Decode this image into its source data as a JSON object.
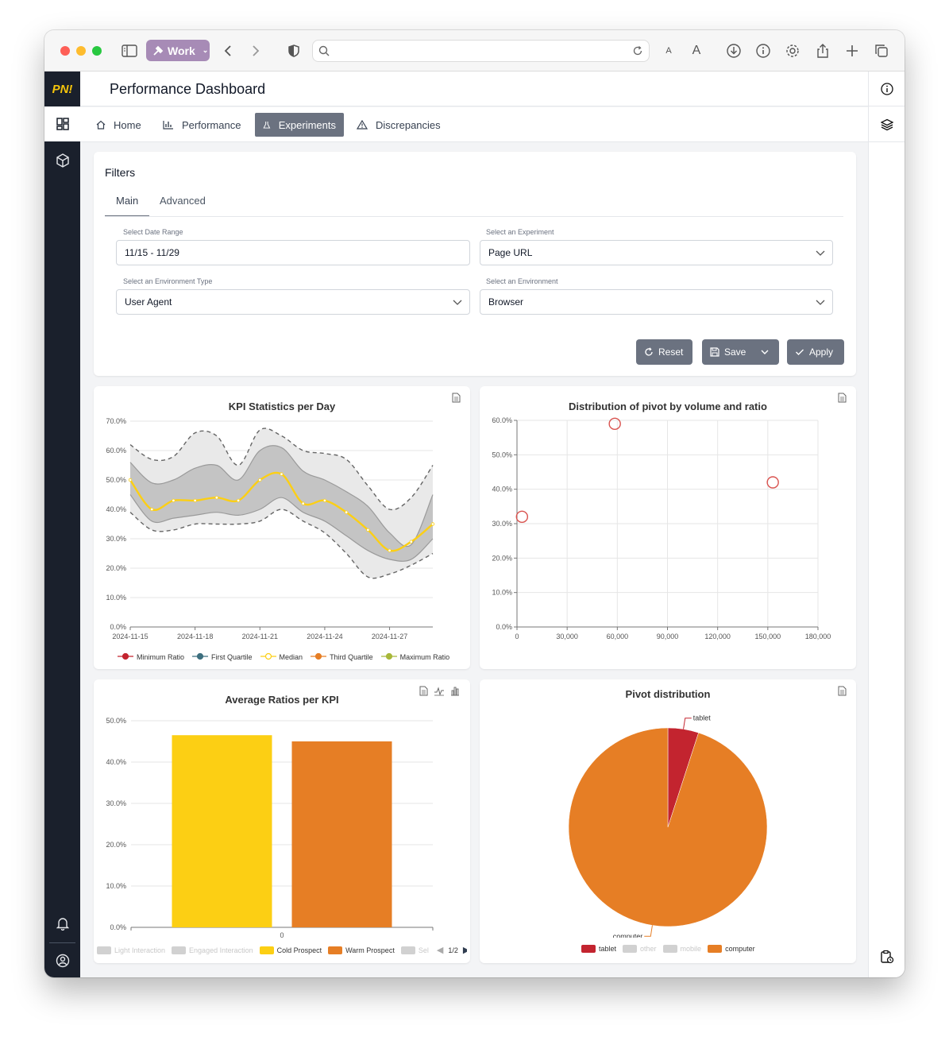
{
  "browser": {
    "profile_label": "Work"
  },
  "app": {
    "logo": "PN!",
    "title": "Performance Dashboard"
  },
  "nav": {
    "tabs": [
      {
        "label": "Home",
        "icon": "home-icon"
      },
      {
        "label": "Performance",
        "icon": "bar-chart-icon"
      },
      {
        "label": "Experiments",
        "icon": "flask-icon",
        "active": true
      },
      {
        "label": "Discrepancies",
        "icon": "warning-icon"
      }
    ]
  },
  "filters": {
    "title": "Filters",
    "tabs": [
      {
        "label": "Main",
        "active": true
      },
      {
        "label": "Advanced"
      }
    ],
    "date_range": {
      "label": "Select Date Range",
      "value": "11/15 - 11/29"
    },
    "experiment": {
      "label": "Select an Experiment",
      "value": "Page URL"
    },
    "env_type": {
      "label": "Select an Environment Type",
      "value": "User Agent"
    },
    "environment": {
      "label": "Select an Environment",
      "value": "Browser"
    },
    "buttons": {
      "reset": "Reset",
      "save": "Save",
      "apply": "Apply"
    }
  },
  "colors": {
    "sidebar": "#1a202c",
    "logo": "#f6c50b",
    "active_tab": "#6b7280",
    "yellow": "#fccf14",
    "orange": "#e67e25",
    "red": "#c3242f",
    "scatter_red": "#d9534f"
  },
  "chart_data": [
    {
      "type": "area",
      "title": "KPI Statistics per Day",
      "x": [
        "2024-11-15",
        "2024-11-16",
        "2024-11-17",
        "2024-11-18",
        "2024-11-19",
        "2024-11-20",
        "2024-11-21",
        "2024-11-22",
        "2024-11-23",
        "2024-11-24",
        "2024-11-25",
        "2024-11-26",
        "2024-11-27",
        "2024-11-28",
        "2024-11-29"
      ],
      "x_tick_labels": [
        "2024-11-15",
        "2024-11-18",
        "2024-11-21",
        "2024-11-24",
        "2024-11-27"
      ],
      "ylim": [
        0,
        70
      ],
      "y_ticks": [
        "0.0%",
        "10.0%",
        "20.0%",
        "30.0%",
        "40.0%",
        "50.0%",
        "60.0%",
        "70.0%"
      ],
      "series": [
        {
          "name": "Minimum Ratio",
          "values": [
            39,
            33,
            33,
            35,
            35,
            35,
            36,
            40,
            36,
            32,
            25,
            17,
            18,
            21,
            25
          ]
        },
        {
          "name": "First Quartile",
          "values": [
            45,
            36,
            37,
            38,
            39,
            38,
            40,
            44,
            39,
            36,
            31,
            26,
            23,
            23,
            30
          ]
        },
        {
          "name": "Median",
          "values": [
            50,
            40,
            43,
            43,
            44,
            43,
            50,
            52,
            42,
            43,
            39,
            33,
            26,
            29,
            35
          ]
        },
        {
          "name": "Third Quartile",
          "values": [
            56,
            49,
            50,
            54,
            55,
            50,
            60,
            61,
            53,
            50,
            46,
            41,
            32,
            28,
            45
          ]
        },
        {
          "name": "Maximum Ratio",
          "values": [
            62,
            57,
            58,
            66,
            65,
            55,
            67,
            65,
            60,
            59,
            57,
            48,
            40,
            44,
            55
          ]
        }
      ],
      "legend_colors": [
        "#c3242f",
        "#3d6f7f",
        "#fccf14",
        "#e67e25",
        "#a8b83a"
      ]
    },
    {
      "type": "scatter",
      "title": "Distribution of pivot by volume and ratio",
      "xlim": [
        0,
        180000
      ],
      "ylim": [
        0,
        60
      ],
      "x_ticks": [
        "0",
        "30,000",
        "60,000",
        "90,000",
        "120,000",
        "150,000",
        "180,000"
      ],
      "y_ticks": [
        "0.0%",
        "10.0%",
        "20.0%",
        "30.0%",
        "40.0%",
        "50.0%",
        "60.0%"
      ],
      "points": [
        {
          "x": 3000,
          "y": 32
        },
        {
          "x": 58500,
          "y": 59
        },
        {
          "x": 153000,
          "y": 42
        }
      ]
    },
    {
      "type": "bar",
      "title": "Average Ratios per KPI",
      "categories": [
        "0"
      ],
      "ylim": [
        0,
        50
      ],
      "y_ticks": [
        "0.0%",
        "10.0%",
        "20.0%",
        "30.0%",
        "40.0%",
        "50.0%"
      ],
      "series": [
        {
          "name": "Cold Prospect",
          "values": [
            46.5
          ],
          "color": "#fccf14"
        },
        {
          "name": "Warm Prospect",
          "values": [
            45
          ],
          "color": "#e67e25"
        }
      ],
      "legend": [
        {
          "name": "Light Interaction",
          "active": false
        },
        {
          "name": "Engaged Interaction",
          "active": false
        },
        {
          "name": "Cold Prospect",
          "active": true
        },
        {
          "name": "Warm Prospect",
          "active": true
        },
        {
          "name": "Sel",
          "active": false
        }
      ],
      "legend_page": "1/2"
    },
    {
      "type": "pie",
      "title": "Pivot distribution",
      "slices": [
        {
          "label": "tablet",
          "value": 5,
          "color": "#c3242f"
        },
        {
          "label": "computer",
          "value": 95,
          "color": "#e67e25"
        }
      ],
      "legend": [
        {
          "name": "tablet",
          "active": true
        },
        {
          "name": "other",
          "active": false
        },
        {
          "name": "mobile",
          "active": false
        },
        {
          "name": "computer",
          "active": true
        }
      ]
    }
  ]
}
